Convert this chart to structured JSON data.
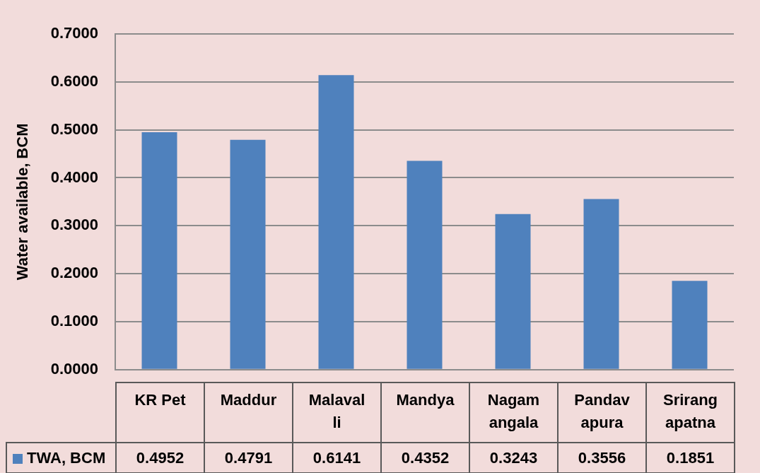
{
  "chart_data": {
    "type": "bar",
    "ylabel": "Water available, BCM",
    "categories": [
      "KR Pet",
      "Maddur",
      "Malavalli",
      "Mandya",
      "Nagamangala",
      "Pandavapura",
      "Srirangapatna"
    ],
    "series": [
      {
        "name": "TWA, BCM",
        "color": "#4f81bd",
        "values": [
          0.4952,
          0.4791,
          0.6141,
          0.4352,
          0.3243,
          0.3556,
          0.1851
        ]
      }
    ],
    "ylim": [
      0,
      0.7
    ],
    "yticks": [
      {
        "value": 0,
        "label": "0.0000"
      },
      {
        "value": 0.1,
        "label": "0.1000"
      },
      {
        "value": 0.2,
        "label": "0.2000"
      },
      {
        "value": 0.3,
        "label": "0.3000"
      },
      {
        "value": 0.4,
        "label": "0.4000"
      },
      {
        "value": 0.5,
        "label": "0.5000"
      },
      {
        "value": 0.6,
        "label": "0.6000"
      },
      {
        "value": 0.7,
        "label": "0.7000"
      }
    ],
    "grid": true,
    "legend": "bottom",
    "data_labels": true
  }
}
